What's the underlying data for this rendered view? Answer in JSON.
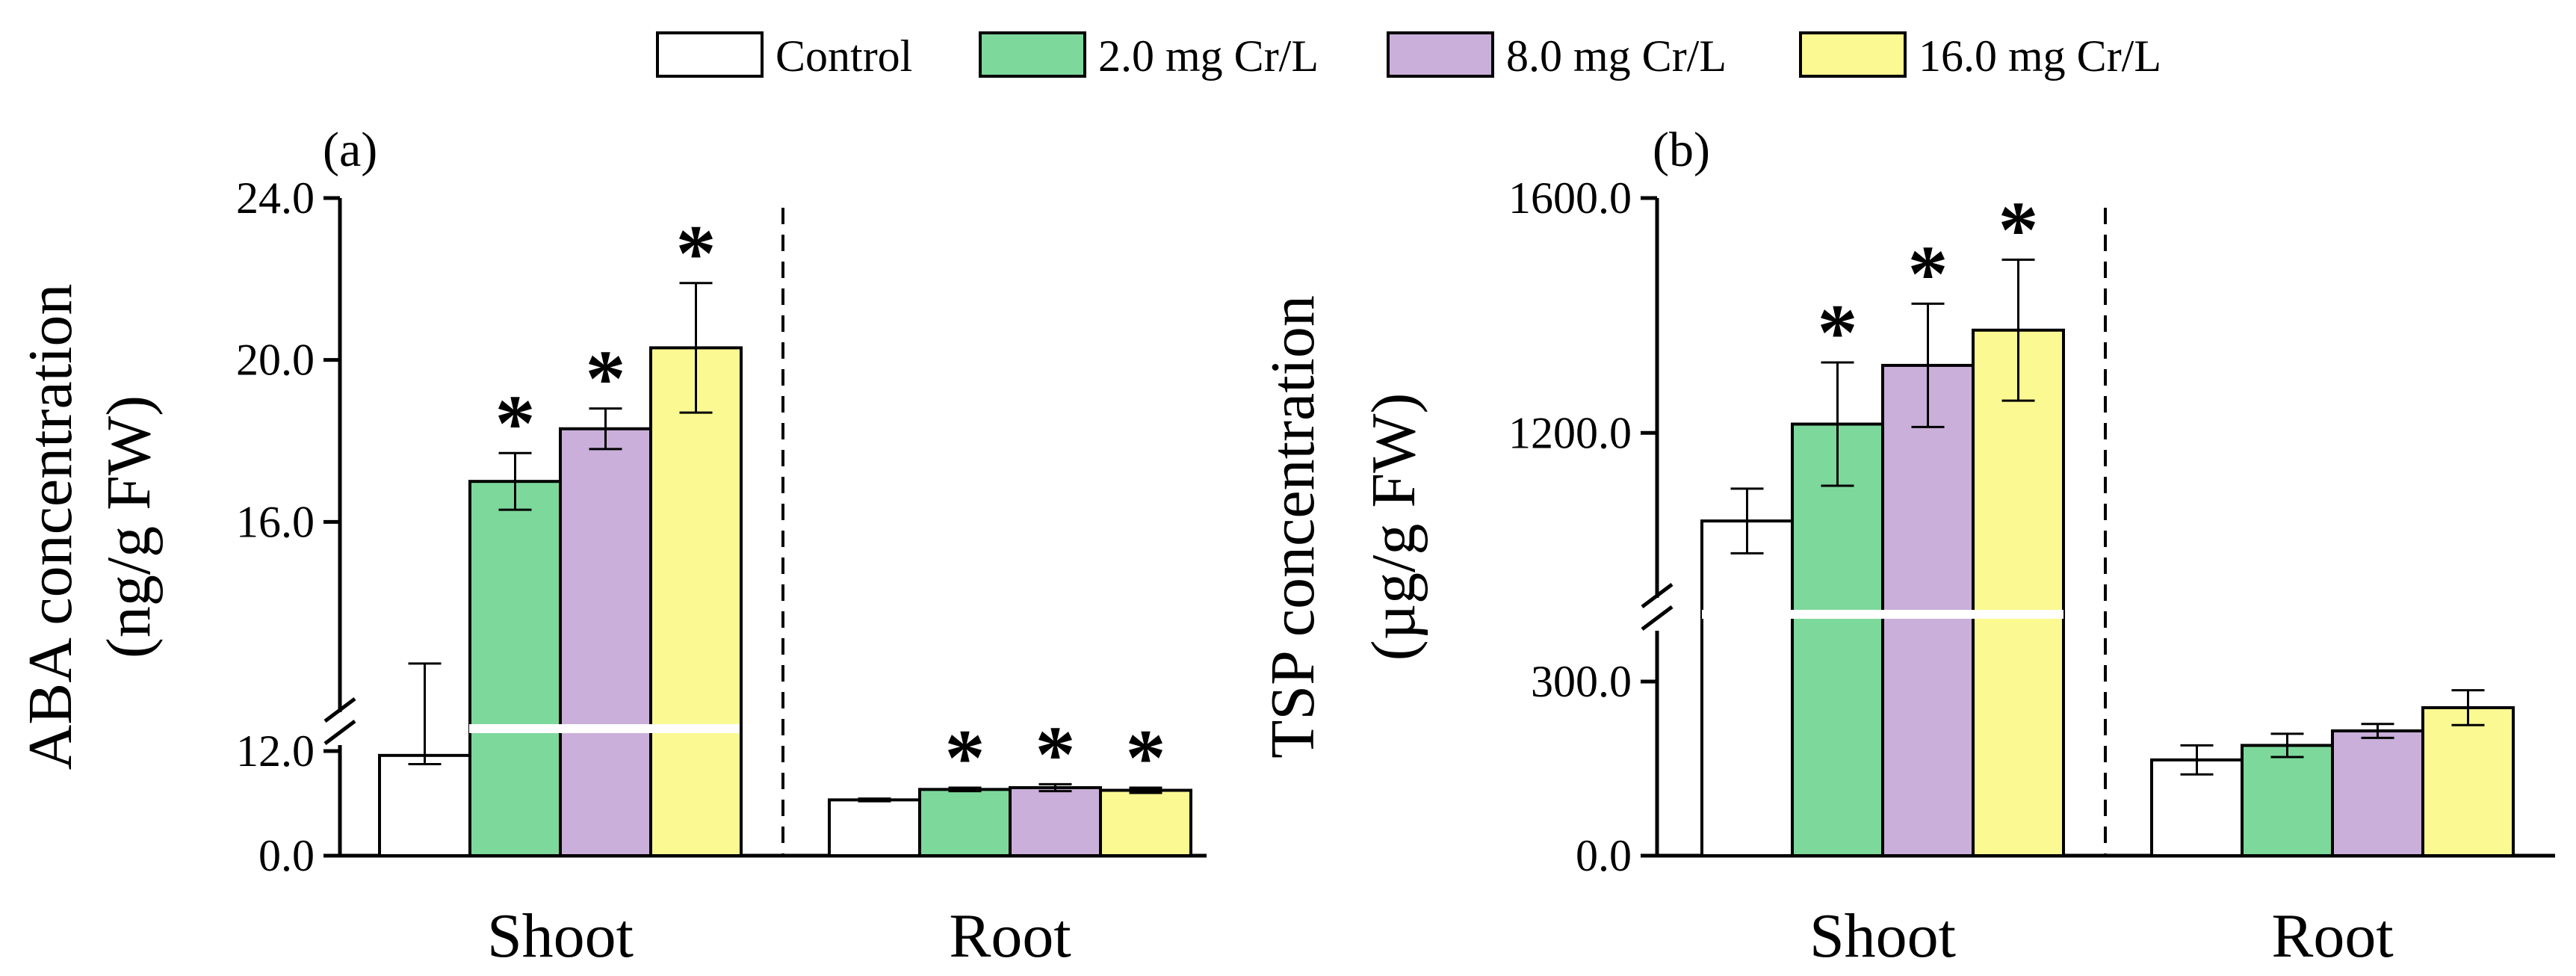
{
  "legend": [
    {
      "label": "Control",
      "color": "#ffffff"
    },
    {
      "label": "2.0 mg Cr/L",
      "color": "#7dd89b"
    },
    {
      "label": "8.0 mg Cr/L",
      "color": "#c9afd9"
    },
    {
      "label": "16.0 mg Cr/L",
      "color": "#fbf992"
    }
  ],
  "significance_marker": "*",
  "chart_data": [
    {
      "type": "bar",
      "panel_label": "(a)",
      "title": "",
      "ylabel_line1": "ABA concentration",
      "ylabel_line2": "(ng/g FW)",
      "xlabel": "",
      "categories": [
        "Shoot",
        "Root"
      ],
      "axis_break": {
        "lower": [
          0,
          12
        ],
        "upper": [
          12,
          24
        ]
      },
      "ylim": [
        0,
        24
      ],
      "yticks": [
        0,
        12,
        16,
        20,
        24
      ],
      "ytick_labels": [
        "0.0",
        "12.0",
        "16.0",
        "20.0",
        "24.0"
      ],
      "series": [
        {
          "name": "Control",
          "values": [
            11.5,
            6.4
          ],
          "errors": [
            1.0,
            0.15
          ],
          "significant": [
            false,
            false
          ]
        },
        {
          "name": "2.0 mg Cr/L",
          "values": [
            17.0,
            7.6
          ],
          "errors": [
            0.7,
            0.2
          ],
          "significant": [
            true,
            true
          ]
        },
        {
          "name": "8.0 mg Cr/L",
          "values": [
            18.3,
            7.8
          ],
          "errors": [
            0.5,
            0.4
          ],
          "significant": [
            true,
            true
          ]
        },
        {
          "name": "16.0 mg Cr/L",
          "values": [
            20.3,
            7.5
          ],
          "errors": [
            1.6,
            0.3
          ],
          "significant": [
            true,
            true
          ]
        }
      ]
    },
    {
      "type": "bar",
      "panel_label": "(b)",
      "title": "",
      "ylabel_line1": "TSP concentration",
      "ylabel_line2": "(µg/g FW)",
      "xlabel": "",
      "categories": [
        "Shoot",
        "Root"
      ],
      "axis_break": {
        "lower": [
          0,
          300
        ],
        "upper": [
          900,
          1600
        ]
      },
      "ylim": [
        0,
        1600
      ],
      "yticks": [
        0,
        300,
        1200,
        1600
      ],
      "ytick_labels": [
        "0.0",
        "300.0",
        "1200.0",
        "1600.0"
      ],
      "series": [
        {
          "name": "Control",
          "values": [
            1050,
            165
          ],
          "errors": [
            55,
            25
          ],
          "significant": [
            false,
            false
          ]
        },
        {
          "name": "2.0 mg Cr/L",
          "values": [
            1215,
            190
          ],
          "errors": [
            105,
            20
          ],
          "significant": [
            true,
            false
          ]
        },
        {
          "name": "8.0 mg Cr/L",
          "values": [
            1315,
            215
          ],
          "errors": [
            105,
            12
          ],
          "significant": [
            true,
            false
          ]
        },
        {
          "name": "16.0 mg Cr/L",
          "values": [
            1375,
            255
          ],
          "errors": [
            120,
            30
          ],
          "significant": [
            true,
            false
          ]
        }
      ]
    }
  ]
}
